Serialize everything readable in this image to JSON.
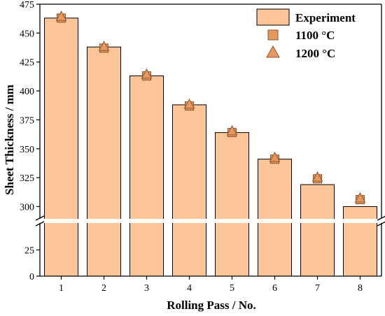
{
  "chart_data": {
    "type": "bar",
    "categories": [
      "1",
      "2",
      "3",
      "4",
      "5",
      "6",
      "7",
      "8"
    ],
    "series": [
      {
        "name": "Experiment",
        "kind": "bar",
        "values": [
          463,
          438,
          413,
          388,
          364,
          341,
          319,
          300
        ]
      },
      {
        "name": "1100 °C",
        "kind": "scatter",
        "marker": "square",
        "values": [
          463,
          437,
          413,
          387,
          364,
          341,
          324,
          306
        ]
      },
      {
        "name": "1200 °C",
        "kind": "scatter",
        "marker": "triangle",
        "values": [
          464,
          438,
          414,
          388,
          365,
          342,
          325,
          307
        ]
      }
    ],
    "xlabel": "Rolling Pass / No.",
    "ylabel": "Sheet Thickness / mm",
    "axis_break": {
      "lower_range": [
        0,
        50
      ],
      "upper_range": [
        290,
        475
      ]
    },
    "y_ticks_lower": [
      0,
      25
    ],
    "y_ticks_upper": [
      300,
      325,
      350,
      375,
      400,
      425,
      450,
      475
    ],
    "legend_position": "top-right",
    "colors": {
      "bar_fill": "#fbc597",
      "bar_stroke": "#000000",
      "marker_fill": "#e8985c",
      "marker_stroke": "#8a5530"
    }
  }
}
